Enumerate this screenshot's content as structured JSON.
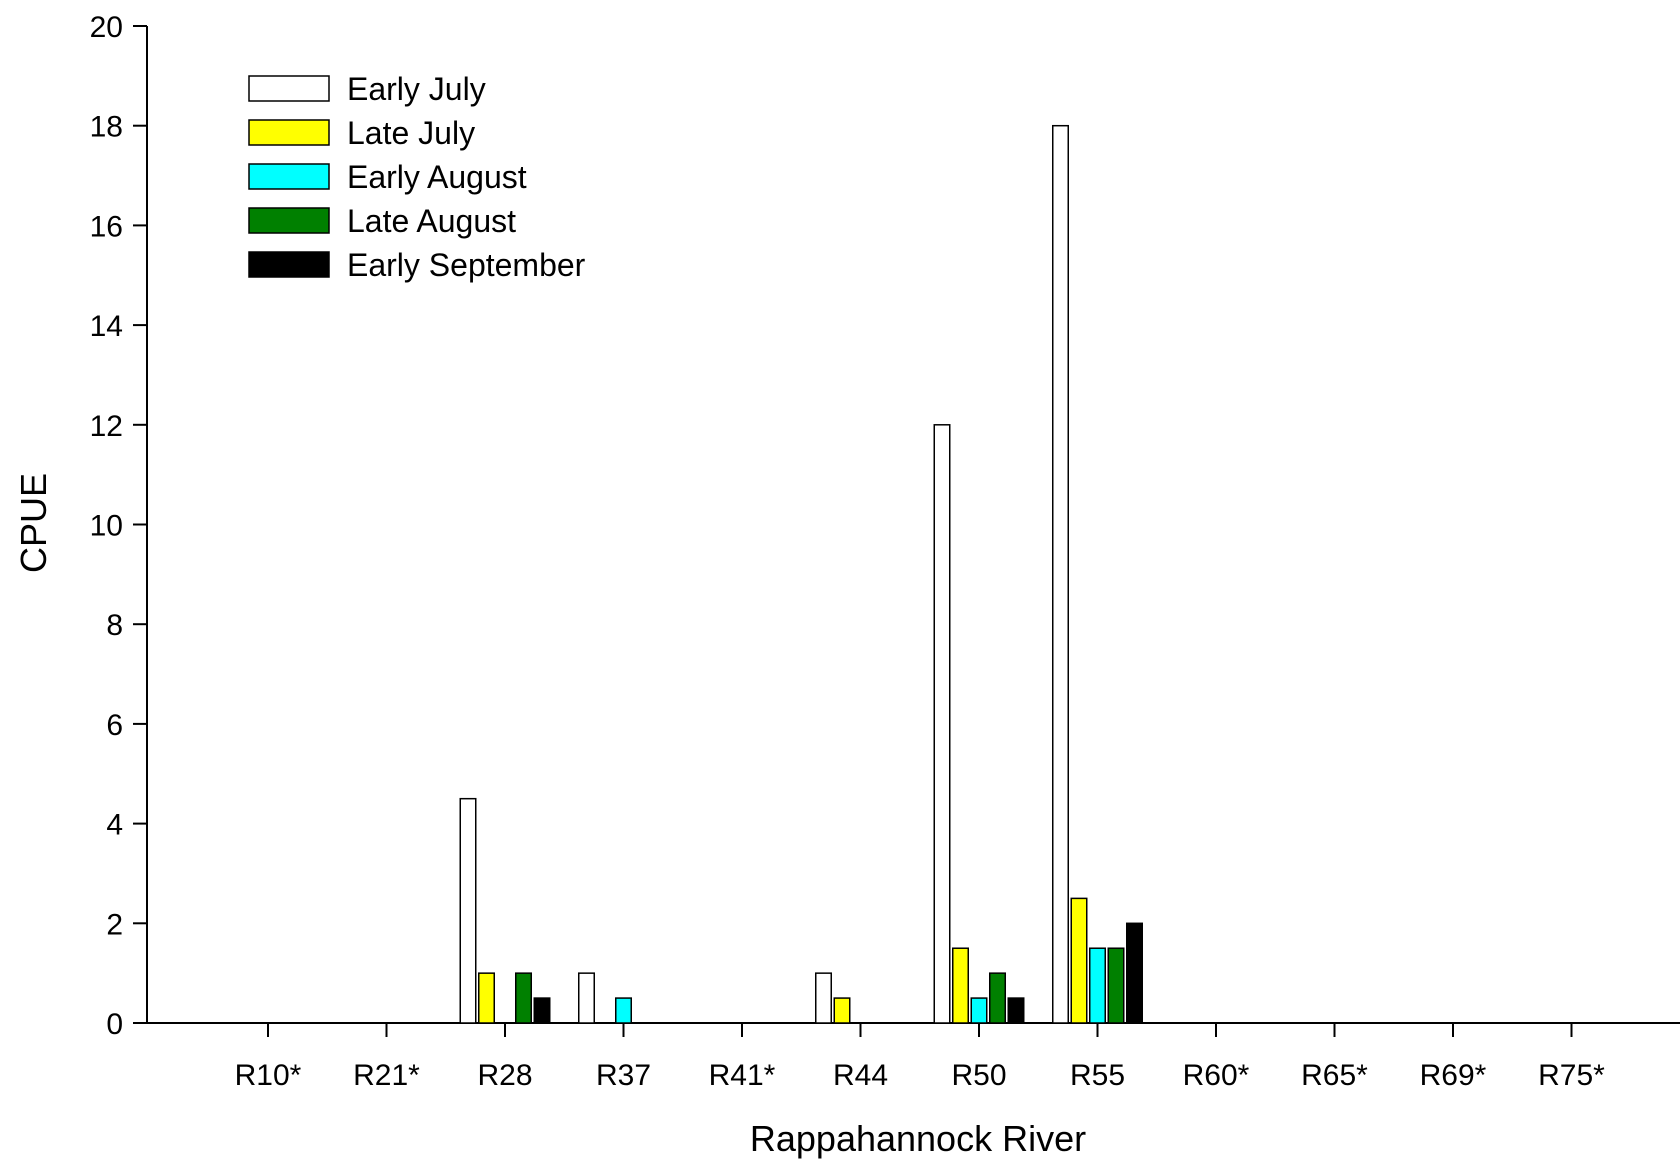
{
  "chart_data": {
    "type": "bar",
    "title": "",
    "xlabel": "Rappahannock River",
    "ylabel": "CPUE",
    "ylim": [
      0,
      20
    ],
    "yticks": [
      0,
      2,
      4,
      6,
      8,
      10,
      12,
      14,
      16,
      18,
      20
    ],
    "grid": false,
    "legend_position": "top-left",
    "categories": [
      "R10*",
      "R21*",
      "R28",
      "R37",
      "R41*",
      "R44",
      "R50",
      "R55",
      "R60*",
      "R65*",
      "R69*",
      "R75*"
    ],
    "series": [
      {
        "name": "Early July",
        "color": "#ffffff",
        "values": [
          0,
          0,
          4.5,
          1,
          0,
          1,
          12,
          18,
          0,
          0,
          0,
          0
        ]
      },
      {
        "name": "Late July",
        "color": "#ffff00",
        "values": [
          0,
          0,
          1,
          0,
          0,
          0.5,
          1.5,
          2.5,
          0,
          0,
          0,
          0
        ]
      },
      {
        "name": "Early August",
        "color": "#00ffff",
        "values": [
          0,
          0,
          0,
          0.5,
          0,
          0,
          0.5,
          1.5,
          0,
          0,
          0,
          0
        ]
      },
      {
        "name": "Late August",
        "color": "#008000",
        "values": [
          0,
          0,
          1,
          0,
          0,
          0,
          1,
          1.5,
          0,
          0,
          0,
          0
        ]
      },
      {
        "name": "Early September",
        "color": "#000000",
        "values": [
          0,
          0,
          0.5,
          0,
          0,
          0,
          0.5,
          2,
          0,
          0,
          0,
          0
        ]
      }
    ]
  }
}
